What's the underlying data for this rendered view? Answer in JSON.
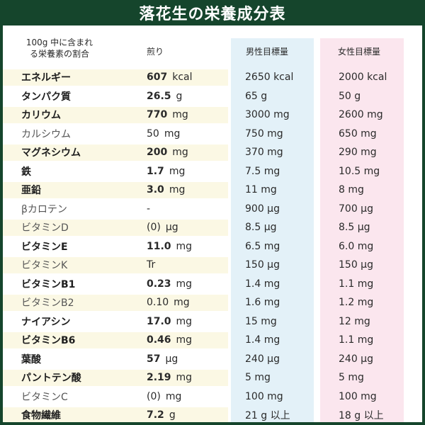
{
  "title": "落花生の栄養成分表",
  "header": {
    "label_line1": "100g 中に含まれ",
    "label_line2": "る栄養素の割合",
    "col_value": "煎り",
    "col_male": "男性目標量",
    "col_female": "女性目標量"
  },
  "rows": [
    {
      "name": "エネルギー",
      "num": "607",
      "unit": "kcal",
      "male": "2650 kcal",
      "female": "2000 kcal",
      "bold": true
    },
    {
      "name": "タンパク質",
      "num": "26.5",
      "unit": "g",
      "male": "65 g",
      "female": "50 g",
      "bold": true
    },
    {
      "name": "カリウム",
      "num": "770",
      "unit": "mg",
      "male": "3000 mg",
      "female": "2600 mg",
      "bold": true
    },
    {
      "name": "カルシウム",
      "num": "50",
      "unit": "mg",
      "male": "750 mg",
      "female": "650 mg",
      "bold": false
    },
    {
      "name": "マグネシウム",
      "num": "200",
      "unit": "mg",
      "male": "370 mg",
      "female": "290 mg",
      "bold": true
    },
    {
      "name": "鉄",
      "num": "1.7",
      "unit": "mg",
      "male": "7.5 mg",
      "female": "10.5 mg",
      "bold": true
    },
    {
      "name": "亜鉛",
      "num": "3.0",
      "unit": "mg",
      "male": "11 mg",
      "female": "8 mg",
      "bold": true
    },
    {
      "name": "βカロテン",
      "num": "-",
      "unit": "",
      "male": "900 μg",
      "female": "700 μg",
      "bold": false
    },
    {
      "name": "ビタミンD",
      "num": "(0)",
      "unit": "μg",
      "male": "8.5 μg",
      "female": "8.5 μg",
      "bold": false
    },
    {
      "name": "ビタミンE",
      "num": "11.0",
      "unit": "mg",
      "male": "6.5 mg",
      "female": "6.0 mg",
      "bold": true
    },
    {
      "name": "ビタミンK",
      "num": "Tr",
      "unit": "",
      "male": "150 μg",
      "female": "150 μg",
      "bold": false
    },
    {
      "name": "ビタミンB1",
      "num": "0.23",
      "unit": "mg",
      "male": "1.4 mg",
      "female": "1.1 mg",
      "bold": true
    },
    {
      "name": "ビタミンB2",
      "num": "0.10",
      "unit": "mg",
      "male": "1.6 mg",
      "female": "1.2 mg",
      "bold": false
    },
    {
      "name": "ナイアシン",
      "num": "17.0",
      "unit": "mg",
      "male": "15 mg",
      "female": "12 mg",
      "bold": true
    },
    {
      "name": "ビタミンB6",
      "num": "0.46",
      "unit": "mg",
      "male": "1.4 mg",
      "female": "1.1 mg",
      "bold": true
    },
    {
      "name": "葉酸",
      "num": "57",
      "unit": "μg",
      "male": "240 μg",
      "female": "240 μg",
      "bold": true
    },
    {
      "name": "パントテン酸",
      "num": "2.19",
      "unit": "mg",
      "male": "5 mg",
      "female": "5 mg",
      "bold": true
    },
    {
      "name": "ビタミンC",
      "num": "(0)",
      "unit": "mg",
      "male": "100 mg",
      "female": "100 mg",
      "bold": false
    },
    {
      "name": "食物繊維",
      "num": "7.2",
      "unit": "g",
      "male": "21 g 以上",
      "female": "18 g 以上",
      "bold": true
    }
  ],
  "colors": {
    "header_bg": "#15452c",
    "male_col": "#e3f1f8",
    "female_col": "#fbe6ee",
    "row_shade": "#fbf8e4"
  }
}
